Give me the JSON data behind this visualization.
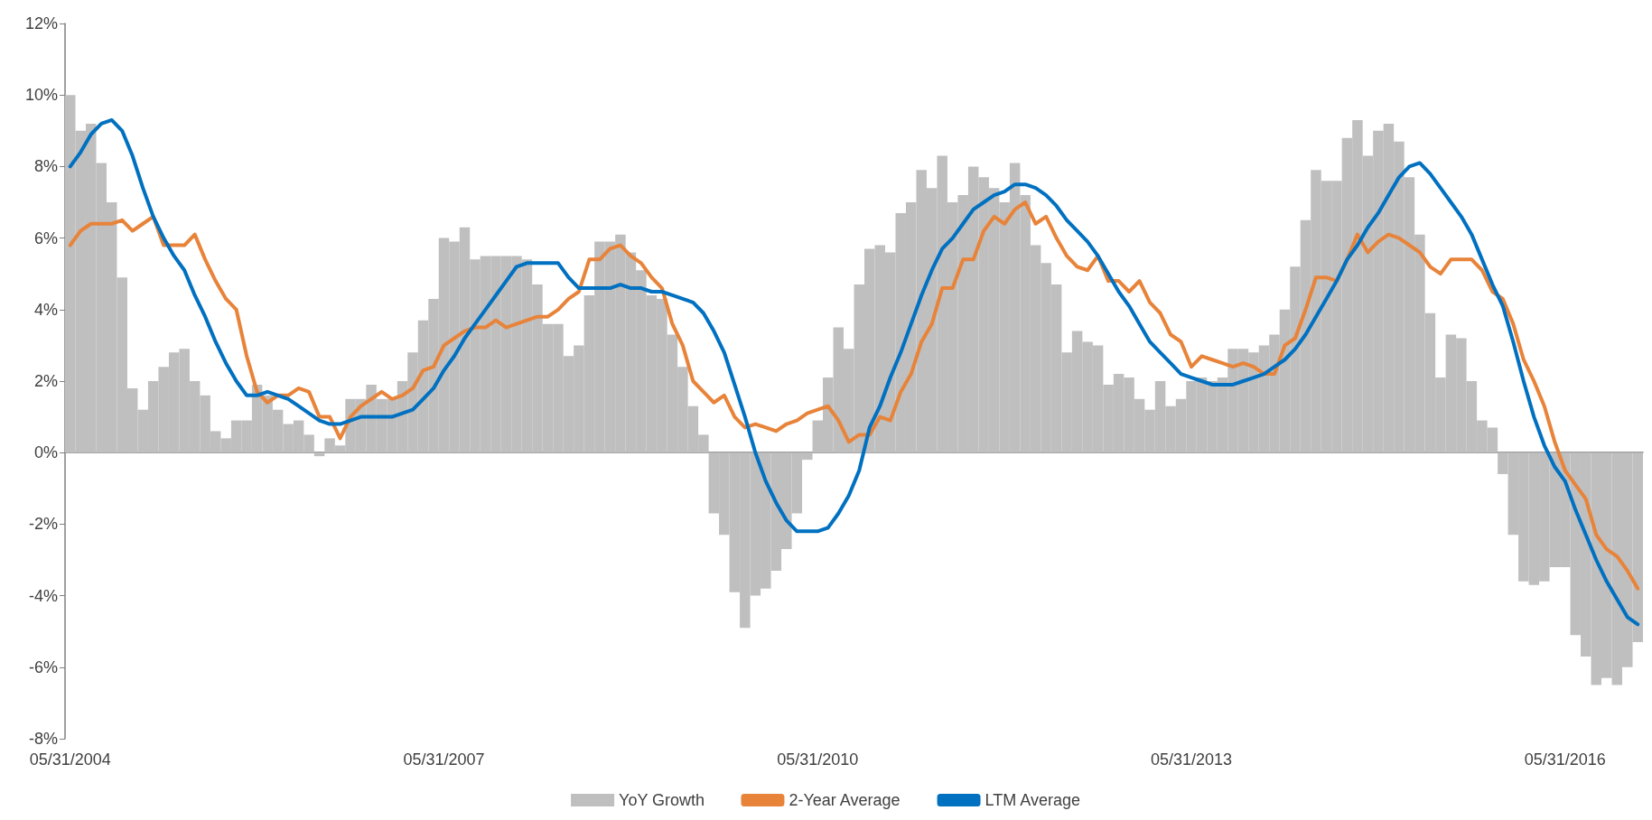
{
  "chart_data": {
    "type": "bar",
    "categories": [
      "05/31/2004",
      null,
      null,
      null,
      null,
      null,
      null,
      null,
      null,
      null,
      null,
      null,
      null,
      null,
      null,
      null,
      null,
      null,
      null,
      null,
      null,
      null,
      null,
      null,
      null,
      null,
      null,
      null,
      null,
      null,
      null,
      null,
      null,
      null,
      null,
      null,
      "05/31/2007",
      null,
      null,
      null,
      null,
      null,
      null,
      null,
      null,
      null,
      null,
      null,
      null,
      null,
      null,
      null,
      null,
      null,
      null,
      null,
      null,
      null,
      null,
      null,
      null,
      null,
      null,
      null,
      null,
      null,
      null,
      null,
      null,
      null,
      null,
      null,
      "05/31/2010",
      null,
      null,
      null,
      null,
      null,
      null,
      null,
      null,
      null,
      null,
      null,
      null,
      null,
      null,
      null,
      null,
      null,
      null,
      null,
      null,
      null,
      null,
      null,
      null,
      null,
      null,
      null,
      null,
      null,
      null,
      null,
      null,
      null,
      null,
      null,
      "05/31/2013",
      null,
      null,
      null,
      null,
      null,
      null,
      null,
      null,
      null,
      null,
      null,
      null,
      null,
      null,
      null,
      null,
      null,
      null,
      null,
      null,
      null,
      null,
      null,
      null,
      null,
      null,
      null,
      null,
      null,
      null,
      null,
      null,
      null,
      null,
      null,
      "05/31/2016",
      null,
      null,
      null,
      null,
      null,
      null,
      null
    ],
    "series": [
      {
        "name": "YoY Growth",
        "color": "#bfbfbf",
        "values": [
          10.0,
          9.0,
          9.2,
          8.1,
          7.0,
          4.9,
          1.8,
          1.2,
          2.0,
          2.4,
          2.8,
          2.9,
          2.0,
          1.6,
          0.6,
          0.4,
          0.9,
          0.9,
          1.9,
          1.6,
          1.2,
          0.8,
          0.9,
          0.5,
          -0.1,
          0.4,
          0.2,
          1.5,
          1.5,
          1.9,
          1.5,
          1.5,
          2.0,
          2.8,
          3.7,
          4.3,
          6.0,
          5.9,
          6.3,
          5.4,
          5.5,
          5.5,
          5.5,
          5.5,
          5.4,
          4.7,
          3.6,
          3.6,
          2.7,
          3.0,
          4.4,
          5.9,
          5.9,
          6.1,
          5.6,
          5.1,
          4.4,
          4.3,
          3.3,
          2.4,
          1.3,
          0.5,
          -1.7,
          -2.3,
          -3.9,
          -4.9,
          -4.0,
          -3.8,
          -3.3,
          -2.7,
          -1.7,
          -0.2,
          0.9,
          2.1,
          3.5,
          2.9,
          4.7,
          5.7,
          5.8,
          5.6,
          6.7,
          7.0,
          7.9,
          7.4,
          8.3,
          7.0,
          7.2,
          8.0,
          7.7,
          7.4,
          7.0,
          8.1,
          7.2,
          5.8,
          5.3,
          4.7,
          2.8,
          3.4,
          3.1,
          3.0,
          1.9,
          2.2,
          2.1,
          1.5,
          1.2,
          2.0,
          1.3,
          1.5,
          2.0,
          2.1,
          2.0,
          2.1,
          2.9,
          2.9,
          2.8,
          3.0,
          3.3,
          4.0,
          5.2,
          6.5,
          7.9,
          7.6,
          7.6,
          8.8,
          9.3,
          8.3,
          9.0,
          9.2,
          8.7,
          7.7,
          6.1,
          3.9,
          2.1,
          3.3,
          3.2,
          2.0,
          0.9,
          0.7,
          -0.6,
          -2.3,
          -3.6,
          -3.7,
          -3.6,
          -3.2,
          -3.2,
          -5.1,
          -5.7,
          -6.5,
          -6.3,
          -6.5,
          -6.0,
          -5.3
        ]
      },
      {
        "name": "2-Year Average",
        "type": "line",
        "color": "#e8833a",
        "values": [
          5.8,
          6.2,
          6.4,
          6.4,
          6.4,
          6.5,
          6.2,
          6.4,
          6.6,
          5.8,
          5.8,
          5.8,
          6.1,
          5.4,
          4.8,
          4.3,
          4.0,
          2.7,
          1.7,
          1.4,
          1.6,
          1.6,
          1.8,
          1.7,
          1.0,
          1.0,
          0.4,
          1.0,
          1.3,
          1.5,
          1.7,
          1.5,
          1.6,
          1.8,
          2.3,
          2.4,
          3.0,
          3.2,
          3.4,
          3.5,
          3.5,
          3.7,
          3.5,
          3.6,
          3.7,
          3.8,
          3.8,
          4.0,
          4.3,
          4.5,
          5.4,
          5.4,
          5.7,
          5.8,
          5.5,
          5.3,
          4.9,
          4.6,
          3.6,
          3.0,
          2.0,
          1.7,
          1.4,
          1.6,
          1.0,
          0.7,
          0.8,
          0.7,
          0.6,
          0.8,
          0.9,
          1.1,
          1.2,
          1.3,
          0.9,
          0.3,
          0.5,
          0.5,
          1.0,
          0.9,
          1.7,
          2.2,
          3.1,
          3.6,
          4.6,
          4.6,
          5.4,
          5.4,
          6.2,
          6.6,
          6.4,
          6.8,
          7.0,
          6.4,
          6.6,
          6.0,
          5.5,
          5.2,
          5.1,
          5.5,
          4.8,
          4.8,
          4.5,
          4.8,
          4.2,
          3.9,
          3.3,
          3.1,
          2.4,
          2.7,
          2.6,
          2.5,
          2.4,
          2.5,
          2.4,
          2.2,
          2.2,
          3.0,
          3.2,
          4.0,
          4.9,
          4.9,
          4.8,
          5.4,
          6.1,
          5.6,
          5.9,
          6.1,
          6.0,
          5.8,
          5.6,
          5.2,
          5.0,
          5.4,
          5.4,
          5.4,
          5.1,
          4.5,
          4.3,
          3.6,
          2.6,
          2.0,
          1.3,
          0.3,
          -0.5,
          -0.9,
          -1.3,
          -2.3,
          -2.7,
          -2.9,
          -3.3,
          -3.8
        ]
      },
      {
        "name": "LTM Average",
        "type": "line",
        "color": "#0070c0",
        "values": [
          8.0,
          8.4,
          8.9,
          9.2,
          9.3,
          9.0,
          8.3,
          7.4,
          6.6,
          6.0,
          5.5,
          5.1,
          4.4,
          3.8,
          3.1,
          2.5,
          2.0,
          1.6,
          1.6,
          1.7,
          1.6,
          1.5,
          1.3,
          1.1,
          0.9,
          0.8,
          0.8,
          0.9,
          1.0,
          1.0,
          1.0,
          1.0,
          1.1,
          1.2,
          1.5,
          1.8,
          2.3,
          2.7,
          3.2,
          3.6,
          4.0,
          4.4,
          4.8,
          5.2,
          5.3,
          5.3,
          5.3,
          5.3,
          4.9,
          4.6,
          4.6,
          4.6,
          4.6,
          4.7,
          4.6,
          4.6,
          4.5,
          4.5,
          4.4,
          4.3,
          4.2,
          3.9,
          3.4,
          2.8,
          1.9,
          1.0,
          0.0,
          -0.8,
          -1.4,
          -1.9,
          -2.2,
          -2.2,
          -2.2,
          -2.1,
          -1.7,
          -1.2,
          -0.5,
          0.7,
          1.3,
          2.1,
          2.8,
          3.6,
          4.4,
          5.1,
          5.7,
          6.0,
          6.4,
          6.8,
          7.0,
          7.2,
          7.3,
          7.5,
          7.5,
          7.4,
          7.2,
          6.9,
          6.5,
          6.2,
          5.9,
          5.5,
          5.0,
          4.5,
          4.1,
          3.6,
          3.1,
          2.8,
          2.5,
          2.2,
          2.1,
          2.0,
          1.9,
          1.9,
          1.9,
          2.0,
          2.1,
          2.2,
          2.4,
          2.6,
          2.9,
          3.3,
          3.8,
          4.3,
          4.8,
          5.4,
          5.8,
          6.3,
          6.7,
          7.2,
          7.7,
          8.0,
          8.1,
          7.8,
          7.4,
          7.0,
          6.6,
          6.1,
          5.4,
          4.7,
          4.1,
          3.1,
          2.0,
          1.0,
          0.2,
          -0.4,
          -0.8,
          -1.6,
          -2.3,
          -3.0,
          -3.6,
          -4.1,
          -4.6,
          -4.8
        ]
      }
    ],
    "ylim": [
      -8,
      12
    ],
    "yticks": [
      {
        "value": -8,
        "label": "-8%"
      },
      {
        "value": -6,
        "label": "-6%"
      },
      {
        "value": -4,
        "label": "-4%"
      },
      {
        "value": -2,
        "label": "-2%"
      },
      {
        "value": 0,
        "label": "0%"
      },
      {
        "value": 2,
        "label": "2%"
      },
      {
        "value": 4,
        "label": "4%"
      },
      {
        "value": 6,
        "label": "6%"
      },
      {
        "value": 8,
        "label": "8%"
      },
      {
        "value": 10,
        "label": "10%"
      },
      {
        "value": 12,
        "label": "12%"
      }
    ],
    "legend": "bottom",
    "marker": "none",
    "line_style": "solid"
  }
}
